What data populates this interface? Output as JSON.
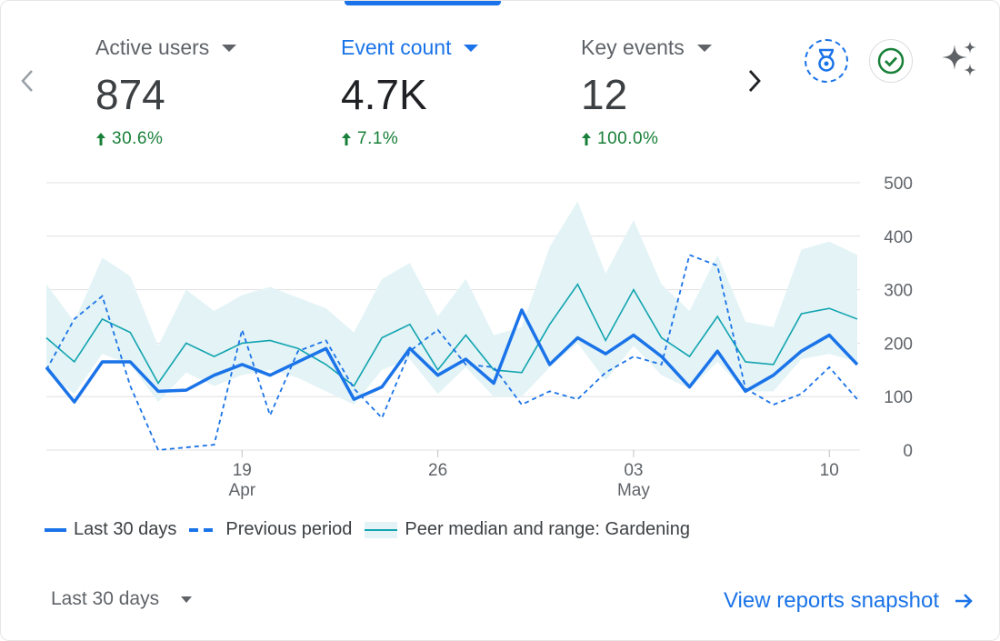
{
  "metrics": [
    {
      "label": "Active users",
      "value": "874",
      "change": "30.6%",
      "active": false
    },
    {
      "label": "Event count",
      "value": "4.7K",
      "change": "7.1%",
      "active": true
    },
    {
      "label": "Key events",
      "value": "12",
      "change": "100.0%",
      "active": false
    }
  ],
  "icons": {
    "prev": "chevron-left-icon",
    "next": "chevron-right-icon",
    "badge": "medal-badge-icon",
    "check": "check-circle-icon",
    "sparkle": "sparkle-icon"
  },
  "colors": {
    "accent": "#1a73e8",
    "positive": "#188038",
    "peer_line": "#12a4af",
    "peer_band": "#e3f3f6",
    "grid": "#e0e0e0"
  },
  "chart_data": {
    "type": "line",
    "ylim": [
      0,
      500
    ],
    "y_ticks": [
      "500",
      "400",
      "300",
      "200",
      "100",
      "0"
    ],
    "x_ticks": [
      {
        "index": 7,
        "day": "19",
        "month": "Apr"
      },
      {
        "index": 14,
        "day": "26",
        "month": ""
      },
      {
        "index": 21,
        "day": "03",
        "month": "May"
      },
      {
        "index": 28,
        "day": "10",
        "month": ""
      }
    ],
    "grid": true,
    "legend_position": "bottom-left",
    "series": [
      {
        "name": "Last 30 days",
        "style": "solid",
        "values": [
          155,
          90,
          165,
          165,
          110,
          112,
          140,
          160,
          140,
          165,
          190,
          95,
          118,
          190,
          140,
          170,
          125,
          262,
          160,
          210,
          180,
          215,
          175,
          118,
          185,
          110,
          140,
          185,
          215,
          160
        ]
      },
      {
        "name": "Previous period",
        "style": "dashed",
        "values": [
          150,
          245,
          288,
          120,
          0,
          5,
          10,
          225,
          65,
          185,
          205,
          115,
          60,
          185,
          225,
          160,
          155,
          85,
          110,
          95,
          145,
          175,
          160,
          365,
          345,
          115,
          85,
          105,
          155,
          95
        ]
      },
      {
        "name": "Peer median and range: Gardening",
        "style": "band",
        "values": [
          210,
          165,
          245,
          220,
          125,
          200,
          175,
          200,
          205,
          190,
          160,
          120,
          210,
          235,
          150,
          215,
          150,
          145,
          235,
          310,
          205,
          300,
          210,
          175,
          250,
          165,
          160,
          255,
          265,
          245
        ],
        "upper": [
          310,
          240,
          360,
          325,
          195,
          300,
          260,
          290,
          305,
          285,
          265,
          220,
          320,
          350,
          250,
          320,
          215,
          230,
          380,
          465,
          330,
          430,
          310,
          260,
          365,
          240,
          230,
          375,
          390,
          365
        ],
        "lower": [
          145,
          105,
          180,
          160,
          90,
          145,
          120,
          140,
          150,
          135,
          110,
          85,
          150,
          170,
          105,
          155,
          100,
          100,
          155,
          200,
          130,
          195,
          140,
          115,
          165,
          110,
          110,
          170,
          180,
          165
        ]
      }
    ]
  },
  "legend": [
    {
      "label": "Last 30 days",
      "style": "solid"
    },
    {
      "label": "Previous period",
      "style": "dashed"
    },
    {
      "label": "Peer median and range: Gardening",
      "style": "band"
    }
  ],
  "footer": {
    "date_range": "Last 30 days",
    "link": "View reports snapshot"
  }
}
